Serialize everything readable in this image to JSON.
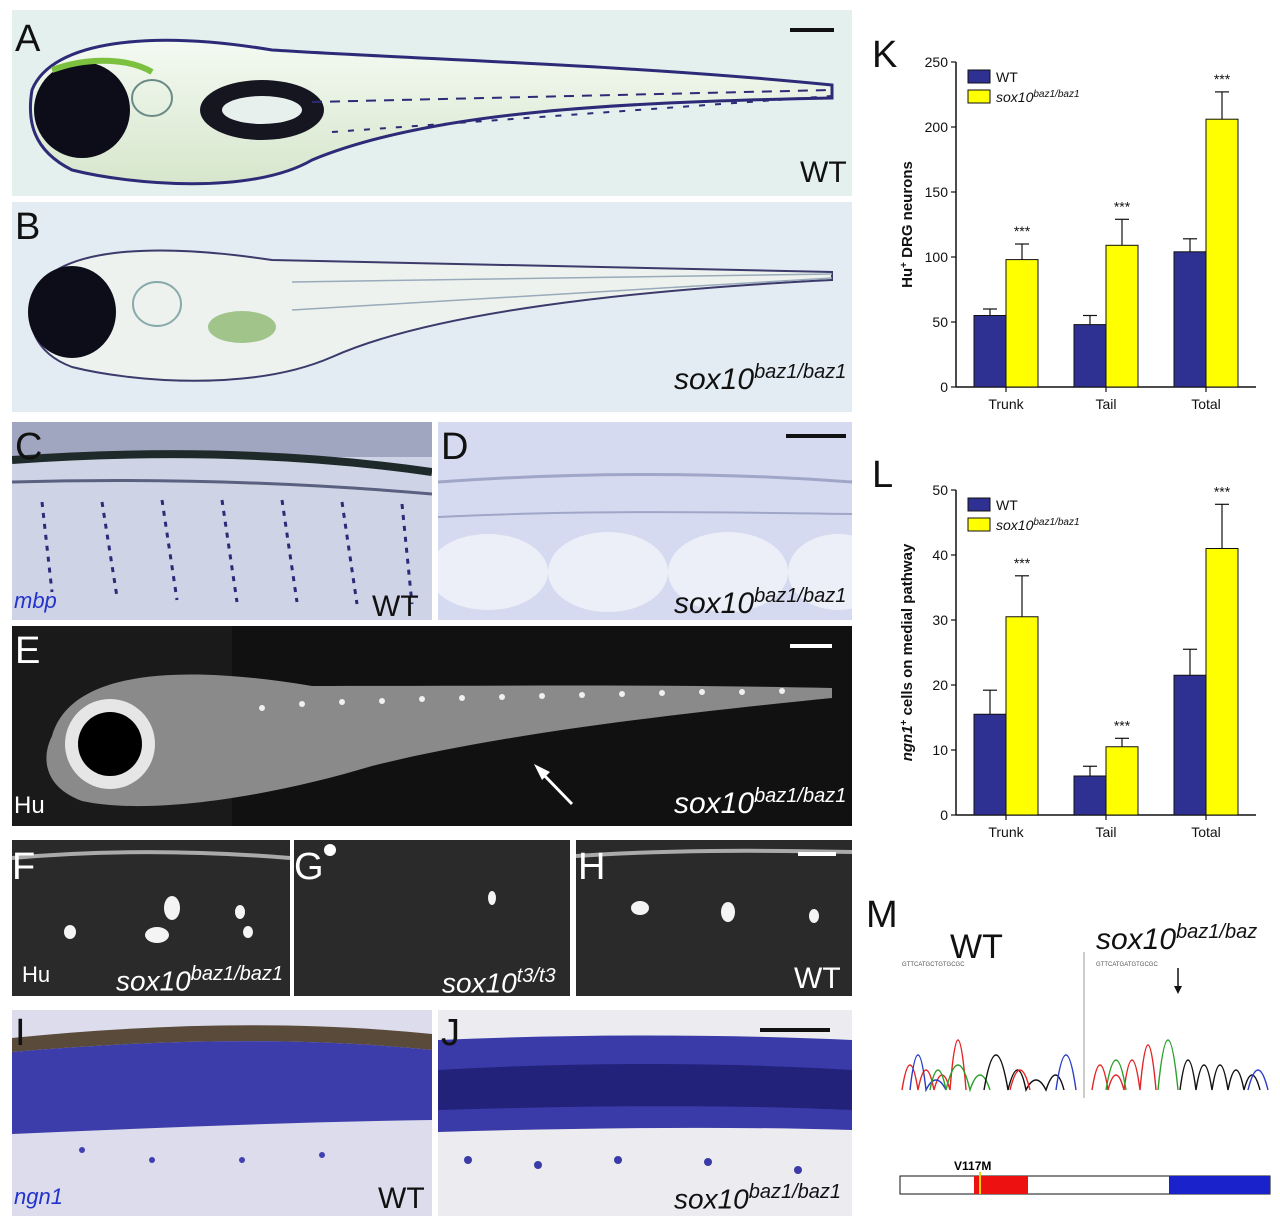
{
  "panels": {
    "A": {
      "letter": "A",
      "label": "WT"
    },
    "B": {
      "letter": "B",
      "label_gene": "sox10",
      "label_sup": "baz1/baz1"
    },
    "C": {
      "letter": "C",
      "probe": "mbp",
      "label": "WT"
    },
    "D": {
      "letter": "D",
      "label_gene": "sox10",
      "label_sup": "baz1/baz1"
    },
    "E": {
      "letter": "E",
      "stain": "Hu",
      "label_gene": "sox10",
      "label_sup": "baz1/baz1"
    },
    "F": {
      "letter": "F",
      "stain": "Hu",
      "label_gene": "sox10",
      "label_sup": "baz1/baz1"
    },
    "G": {
      "letter": "G",
      "label_gene": "sox10",
      "label_sup": "t3/t3"
    },
    "H": {
      "letter": "H",
      "label": "WT"
    },
    "I": {
      "letter": "I",
      "probe": "ngn1",
      "label": "WT"
    },
    "J": {
      "letter": "J",
      "label_gene": "sox10",
      "label_sup": "baz1/baz1"
    },
    "K": {
      "letter": "K"
    },
    "L": {
      "letter": "L"
    },
    "M": {
      "letter": "M",
      "wt_label": "WT",
      "mut_gene": "sox10",
      "mut_sup": "baz1/baz",
      "mutation": "V117M"
    }
  },
  "colors": {
    "wt": "#2e3192",
    "mutant": "#ffff00"
  },
  "chart_data": [
    {
      "type": "bar",
      "panel": "K",
      "ylabel_main": "Hu",
      "ylabel_sup": "+",
      "ylabel_rest": " DRG neurons",
      "ylim": [
        0,
        250
      ],
      "yticks": [
        "0",
        "50",
        "100",
        "150",
        "200",
        "250"
      ],
      "categories": [
        "Trunk",
        "Tail",
        "Total"
      ],
      "legend": {
        "placement": "top-left",
        "wt": "WT",
        "mut_gene": "sox10",
        "mut_sup": "baz1/baz1"
      },
      "series": [
        {
          "name": "WT",
          "values": [
            55,
            48,
            104
          ],
          "errors": [
            5,
            7,
            10
          ]
        },
        {
          "name": "sox10 baz1/baz1",
          "values": [
            98,
            109,
            206
          ],
          "errors": [
            12,
            20,
            21
          ]
        }
      ],
      "significance": [
        "***",
        "***",
        "***"
      ]
    },
    {
      "type": "bar",
      "panel": "L",
      "ylabel_main": "ngn1",
      "ylabel_sup": "+",
      "ylabel_rest": " cells on medial pathway",
      "ylim": [
        0,
        50
      ],
      "yticks": [
        "0",
        "10",
        "20",
        "30",
        "40",
        "50"
      ],
      "categories": [
        "Trunk",
        "Tail",
        "Total"
      ],
      "legend": {
        "placement": "top-left",
        "wt": "WT",
        "mut_gene": "sox10",
        "mut_sup": "baz1/baz1"
      },
      "series": [
        {
          "name": "WT",
          "values": [
            15.5,
            6,
            21.5
          ],
          "errors": [
            3.7,
            1.5,
            4
          ]
        },
        {
          "name": "sox10 baz1/baz1",
          "values": [
            30.5,
            10.5,
            41
          ],
          "errors": [
            6.3,
            1.3,
            6.8
          ]
        }
      ],
      "significance": [
        "***",
        "***",
        "***"
      ]
    }
  ],
  "sequence": {
    "wt": "GTTCATGCTGTGCGC",
    "mut": "GTTCATGATGTGCGC"
  }
}
